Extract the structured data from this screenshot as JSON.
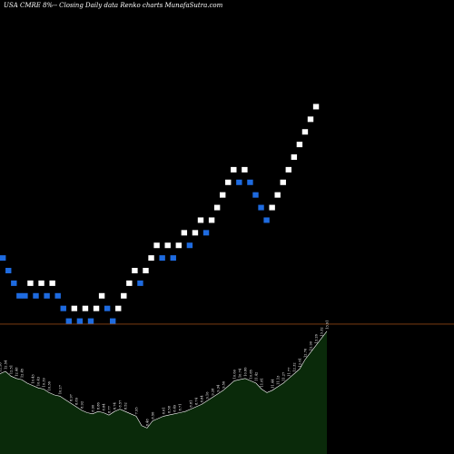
{
  "header": {
    "title": "USA CMRE 8%-- Closing Daily data  Renko  charts MunafaSutra.com"
  },
  "colors": {
    "background": "#000000",
    "up_brick": "#ffffff",
    "down_brick": "#1e6be0",
    "reference_line": "#8b4513",
    "volume_fill": "#0a2a0a",
    "volume_line": "#ffffff"
  },
  "chart_data": {
    "type": "renko",
    "title": "USA CMRE 8%-- Closing Daily data  Renko  charts MunafaSutra.com",
    "brick_levels": [
      15,
      14,
      13,
      12,
      12,
      13,
      12,
      13,
      12,
      13,
      12,
      11,
      10,
      11,
      10,
      11,
      10,
      11,
      12,
      11,
      10,
      11,
      12,
      13,
      14,
      13,
      14,
      15,
      16,
      15,
      16,
      15,
      16,
      17,
      16,
      17,
      18,
      17,
      18,
      19,
      20,
      21,
      22,
      21,
      22,
      21,
      20,
      19,
      18,
      19,
      20,
      21,
      22,
      23,
      24,
      25,
      26,
      27
    ],
    "directions": [
      "down",
      "down",
      "down",
      "down",
      "down",
      "up",
      "down",
      "up",
      "down",
      "up",
      "down",
      "down",
      "down",
      "up",
      "down",
      "up",
      "down",
      "up",
      "up",
      "down",
      "down",
      "up",
      "up",
      "up",
      "up",
      "down",
      "up",
      "up",
      "up",
      "down",
      "up",
      "down",
      "up",
      "up",
      "down",
      "up",
      "up",
      "down",
      "up",
      "up",
      "up",
      "up",
      "up",
      "down",
      "up",
      "down",
      "down",
      "down",
      "down",
      "up",
      "up",
      "up",
      "up",
      "up",
      "up",
      "up",
      "up",
      "up"
    ],
    "reference_level": 10.3,
    "level_range": [
      0,
      36
    ],
    "volume": {
      "values": [
        68,
        70,
        66,
        64,
        63,
        60,
        58,
        56,
        55,
        52,
        50,
        49,
        46,
        43,
        40,
        37,
        35,
        34,
        36,
        35,
        33,
        36,
        38,
        36,
        34,
        32,
        24,
        22,
        28,
        30,
        32,
        33,
        34,
        35,
        36,
        38,
        40,
        42,
        45,
        48,
        51,
        54,
        58,
        62,
        63,
        64,
        62,
        60,
        55,
        52,
        54,
        57,
        60,
        64,
        68,
        72,
        80,
        86,
        92,
        98,
        104
      ],
      "labels": [
        "12.56",
        "12.54",
        "12.51",
        "12.48",
        "12.45",
        "",
        "10.43",
        "10.43",
        "10.39",
        "10.36",
        "",
        "10.27",
        "",
        "8.97",
        "8.89",
        "8.92",
        "",
        "8.90",
        "8.86",
        "8.84",
        "8.77",
        "8.74",
        "8.57",
        "8.52",
        "",
        "7.95",
        "",
        "8.48",
        "8.56",
        "",
        "8.61",
        "8.58",
        "8.49",
        "8.71",
        "",
        "8.81",
        "8.74",
        "8.84",
        "9.16",
        "9.28",
        "9.34",
        "9.56",
        "",
        "10.60",
        "10.74",
        "10.86",
        "10.85",
        "11.42",
        "11.81",
        "",
        "11.44",
        "11.13",
        "11.27",
        "11.77",
        "12.32",
        "12.61",
        "12.76",
        "12.90",
        "13.26",
        "13.32",
        "13.91"
      ]
    }
  }
}
